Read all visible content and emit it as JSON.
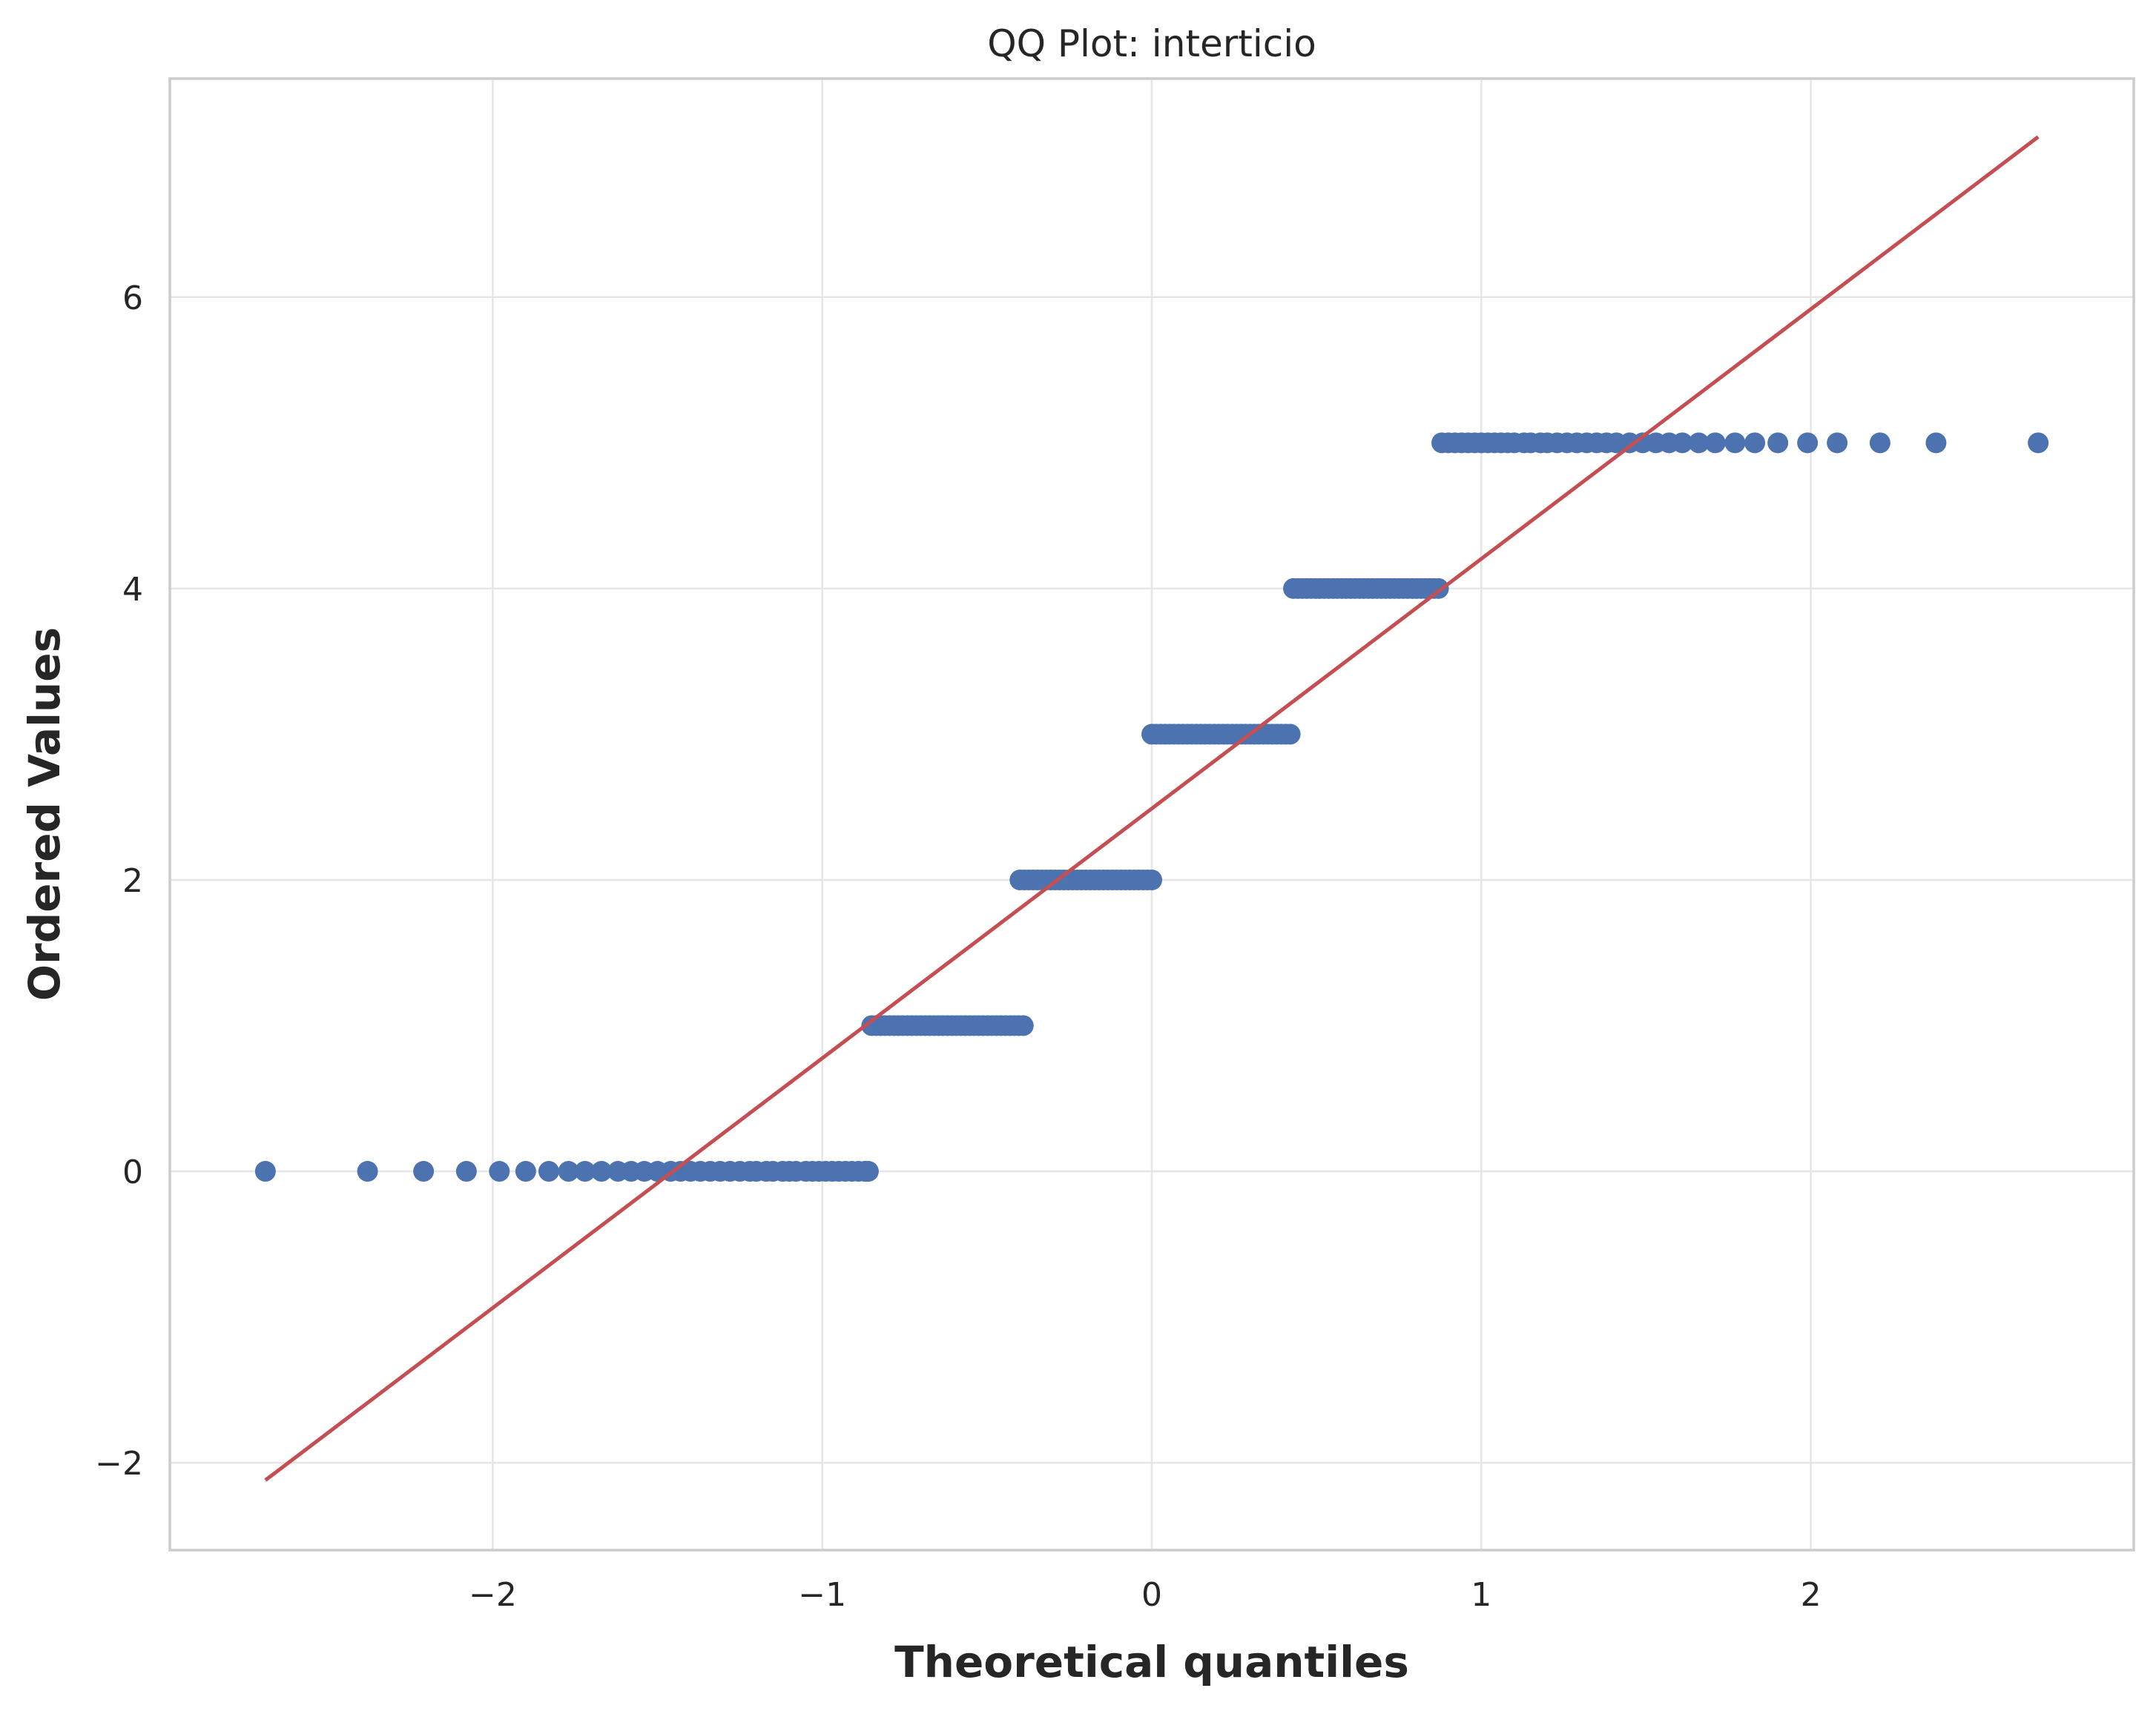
{
  "chart_data": {
    "type": "scatter",
    "title": "QQ Plot: interticio",
    "xlabel": "Theoretical quantiles",
    "ylabel": "Ordered Values",
    "xlim": [
      -2.98,
      2.98
    ],
    "ylim": [
      -2.6,
      7.5
    ],
    "xticks": [
      -2,
      -1,
      0,
      1,
      2
    ],
    "xtick_labels": [
      "−2",
      "−1",
      "0",
      "1",
      "2"
    ],
    "yticks": [
      -2,
      0,
      2,
      4,
      6
    ],
    "ytick_labels": [
      "−2",
      "0",
      "2",
      "4",
      "6"
    ],
    "grid": true,
    "colors": {
      "points": "#4c72b0",
      "fit_line": "#c44e52",
      "grid": "#e6e6e6",
      "frame": "#cccccc"
    },
    "series": [
      {
        "kind": "points",
        "segments": [
          {
            "y": 0,
            "outliers": [
              -2.69,
              -2.38,
              -2.21,
              -2.08,
              -1.98,
              -1.9,
              -1.83,
              -1.77,
              -1.72,
              -1.67,
              -1.62,
              -1.58,
              -1.54,
              -1.5,
              -1.46,
              -1.43,
              -1.4,
              -1.37,
              -1.34,
              -1.31,
              -1.28,
              -1.25,
              -1.22,
              -1.2,
              -1.17,
              -1.15,
              -1.12,
              -1.1,
              -1.08,
              -1.05,
              -1.03,
              -1.01,
              -0.99,
              -0.97,
              -0.95,
              -0.93,
              -0.91,
              -0.89,
              -0.87
            ],
            "x_start": -0.87,
            "x_end": -0.86
          },
          {
            "y": 1,
            "outliers": [],
            "x_start": -0.85,
            "x_end": -0.39
          },
          {
            "y": 2,
            "outliers": [],
            "x_start": -0.4,
            "x_end": 0.0
          },
          {
            "y": 3,
            "outliers": [],
            "x_start": 0.0,
            "x_end": 0.42
          },
          {
            "y": 4,
            "outliers": [],
            "x_start": 0.43,
            "x_end": 0.87
          },
          {
            "y": 5,
            "outliers": [
              0.88,
              0.9,
              0.92,
              0.94,
              0.96,
              0.98,
              1.0,
              1.02,
              1.04,
              1.06,
              1.08,
              1.1,
              1.13,
              1.15,
              1.18,
              1.2,
              1.23,
              1.26,
              1.29,
              1.32,
              1.35,
              1.38,
              1.41,
              1.45,
              1.49,
              1.53,
              1.57,
              1.61,
              1.66,
              1.71,
              1.77,
              1.83,
              1.9,
              1.99,
              2.08,
              2.21,
              2.38,
              2.69
            ],
            "x_start": 0.88,
            "x_end": 0.88
          }
        ]
      },
      {
        "kind": "line",
        "x": [
          -2.69,
          2.69
        ],
        "y": [
          -2.12,
          7.1
        ]
      }
    ]
  }
}
